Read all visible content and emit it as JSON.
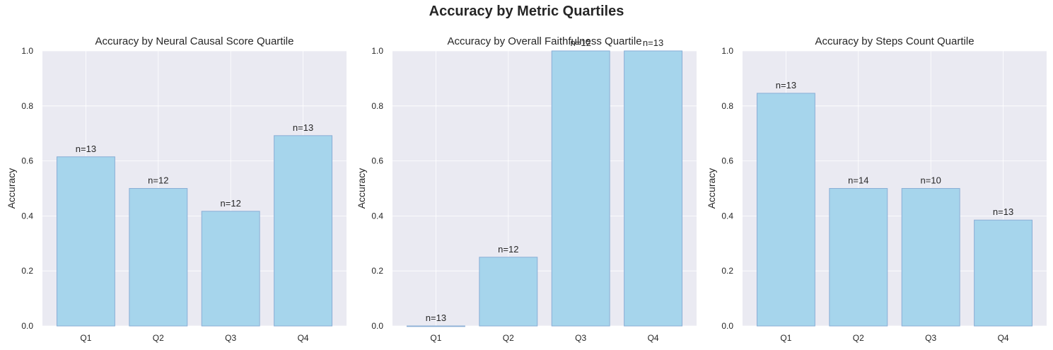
{
  "figure": {
    "suptitle": "Accuracy by Metric Quartiles",
    "colors": {
      "bar_fill": "#a6d5ec",
      "bar_edge": "#8aaed6",
      "axes_background": "#eaeaf2",
      "grid": "#ffffff",
      "text": "#262626"
    }
  },
  "chart_data": [
    {
      "type": "bar",
      "title": "Accuracy by Neural Causal Score Quartile",
      "xlabel": "",
      "ylabel": "Accuracy",
      "categories": [
        "Q1",
        "Q2",
        "Q3",
        "Q4"
      ],
      "values": [
        0.615,
        0.5,
        0.417,
        0.692
      ],
      "annotations": [
        "n=13",
        "n=12",
        "n=12",
        "n=13"
      ],
      "ylim": [
        0,
        1.0
      ],
      "yticks": [
        "0.0",
        "0.2",
        "0.4",
        "0.6",
        "0.8",
        "1.0"
      ],
      "grid": true
    },
    {
      "type": "bar",
      "title": "Accuracy by Overall Faithfulness Quartile",
      "xlabel": "",
      "ylabel": "Accuracy",
      "categories": [
        "Q1",
        "Q2",
        "Q3",
        "Q4"
      ],
      "values": [
        0.0,
        0.25,
        1.0,
        1.0
      ],
      "annotations": [
        "n=13",
        "n=12",
        "n=12",
        "n=13"
      ],
      "ylim": [
        0,
        1.0
      ],
      "yticks": [
        "0.0",
        "0.2",
        "0.4",
        "0.6",
        "0.8",
        "1.0"
      ],
      "grid": true
    },
    {
      "type": "bar",
      "title": "Accuracy by Steps Count Quartile",
      "xlabel": "",
      "ylabel": "Accuracy",
      "categories": [
        "Q1",
        "Q2",
        "Q3",
        "Q4"
      ],
      "values": [
        0.846,
        0.5,
        0.5,
        0.385
      ],
      "annotations": [
        "n=13",
        "n=14",
        "n=10",
        "n=13"
      ],
      "ylim": [
        0,
        1.0
      ],
      "yticks": [
        "0.0",
        "0.2",
        "0.4",
        "0.6",
        "0.8",
        "1.0"
      ],
      "grid": true
    }
  ]
}
